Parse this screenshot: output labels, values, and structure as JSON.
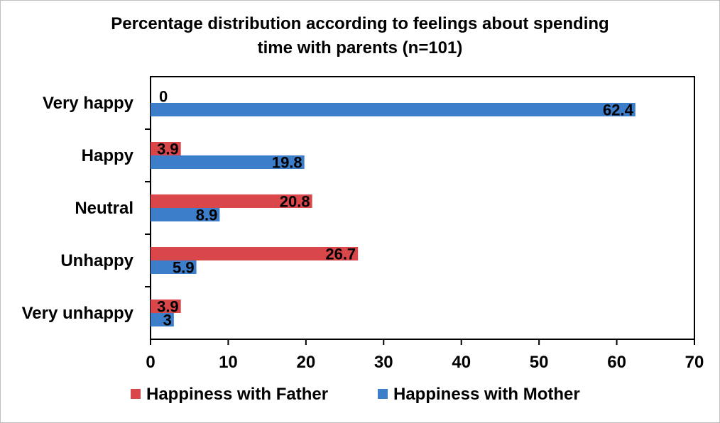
{
  "chart_data": {
    "type": "bar",
    "orientation": "horizontal",
    "title": "Percentage distribution according to feelings about spending time with parents (n=101)",
    "title_lines": [
      "Percentage distribution according to feelings about spending",
      "time with parents (n=101)"
    ],
    "categories": [
      "Very happy",
      "Happy",
      "Neutral",
      "Unhappy",
      "Very unhappy"
    ],
    "series": [
      {
        "name": "Happiness with Father",
        "color": "#d9474a",
        "values": [
          0,
          3.9,
          20.8,
          26.7,
          3.9
        ]
      },
      {
        "name": "Happiness with Mother",
        "color": "#3d7ecb",
        "values": [
          62.4,
          19.8,
          8.9,
          5.9,
          3
        ]
      }
    ],
    "data_labels": {
      "Happiness with Father": [
        "0",
        "3.9",
        "20.8",
        "26.7",
        "3.9"
      ],
      "Happiness with Mother": [
        "62.4",
        "19.8",
        "8.9",
        "5.9",
        "3"
      ]
    },
    "xlim": [
      0,
      70
    ],
    "xticks": [
      0,
      10,
      20,
      30,
      40,
      50,
      60,
      70
    ],
    "xlabel": "",
    "ylabel": "",
    "grid": false,
    "legend_position": "bottom"
  }
}
